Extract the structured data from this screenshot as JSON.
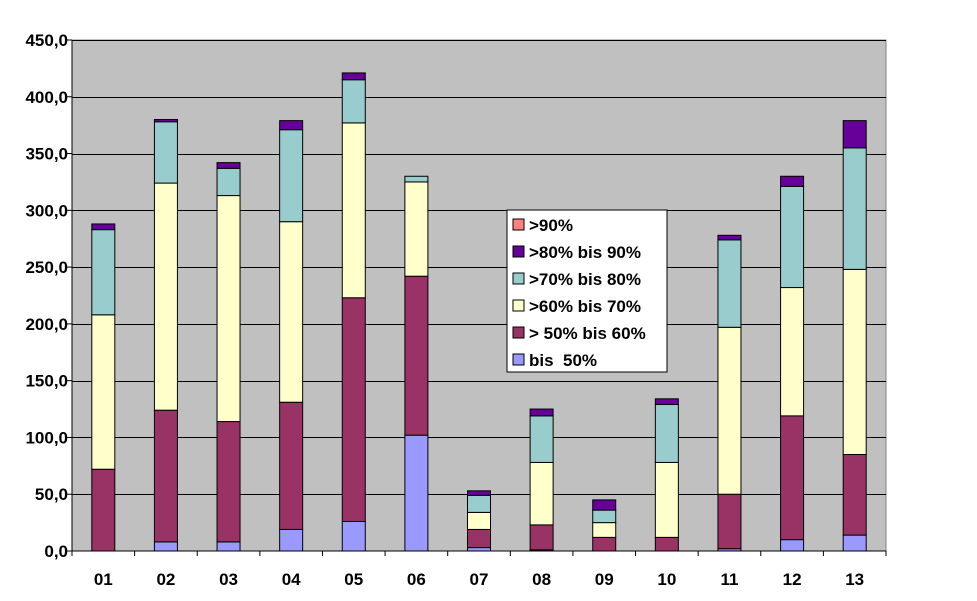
{
  "chart_data": {
    "type": "bar",
    "stacked": true,
    "categories": [
      "01",
      "02",
      "03",
      "04",
      "05",
      "06",
      "07",
      "08",
      "09",
      "10",
      "11",
      "12",
      "13"
    ],
    "ylim": [
      0,
      450
    ],
    "yticks": [
      "0,0",
      "50,0",
      "100,0",
      "150,0",
      "200,0",
      "250,0",
      "300,0",
      "350,0",
      "400,0",
      "450,0"
    ],
    "ytick_values": [
      0,
      50,
      100,
      150,
      200,
      250,
      300,
      350,
      400,
      450
    ],
    "grid": true,
    "legend_position": "center-right",
    "plot_background": "#c0c0c0",
    "series": [
      {
        "name": "bis  50%",
        "color": "#9999ff",
        "values": [
          0,
          8,
          8,
          19,
          26,
          102,
          3,
          1,
          0,
          0,
          2,
          10,
          14
        ]
      },
      {
        "name": "> 50% bis 60%",
        "color": "#993366",
        "values": [
          72,
          116,
          106,
          112,
          197,
          140,
          16,
          22,
          12,
          12,
          48,
          109,
          71
        ]
      },
      {
        "name": ">60% bis 70%",
        "color": "#ffffcc",
        "values": [
          136,
          200,
          199,
          159,
          154,
          83,
          15,
          55,
          13,
          66,
          147,
          113,
          163
        ]
      },
      {
        "name": ">70% bis 80%",
        "color": "#99cccc",
        "values": [
          75,
          54,
          24,
          81,
          38,
          5,
          15,
          41,
          11,
          51,
          77,
          89,
          107
        ]
      },
      {
        "name": ">80% bis 90%",
        "color": "#660099",
        "values": [
          5,
          2,
          5,
          8,
          6,
          0,
          4,
          6,
          9,
          5,
          4,
          9,
          24
        ]
      },
      {
        "name": ">90%",
        "color": "#ff8080",
        "values": [
          0,
          0,
          0,
          0,
          0,
          0,
          0,
          0,
          0,
          0,
          0,
          0,
          0
        ]
      }
    ],
    "legend_order": [
      5,
      4,
      3,
      2,
      1,
      0
    ]
  }
}
